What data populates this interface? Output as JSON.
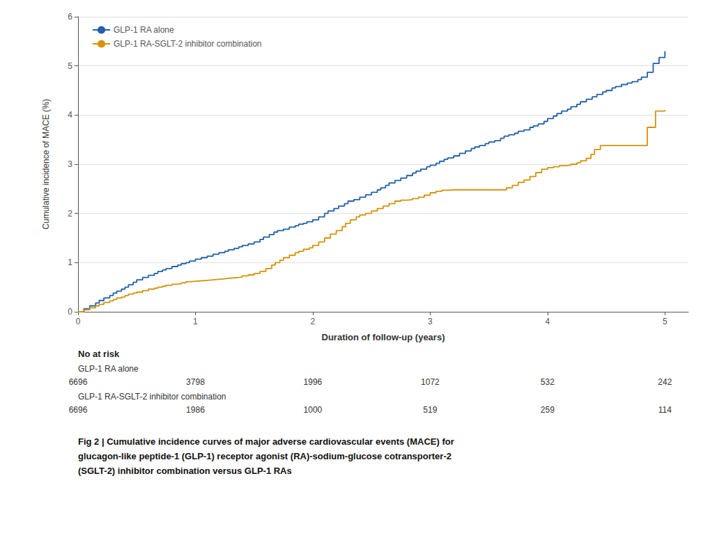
{
  "chart_data": {
    "type": "step",
    "xlabel": "Duration of follow-up (years)",
    "ylabel": "Cumulative incidence of MACE (%)",
    "xlim": [
      0,
      5.2
    ],
    "ylim": [
      0,
      6
    ],
    "xticks": [
      0,
      1,
      2,
      3,
      4,
      5
    ],
    "yticks": [
      0,
      1,
      2,
      3,
      4,
      5,
      6
    ],
    "grid": "y",
    "legend": "upper left",
    "series": [
      {
        "name": "GLP-1 RA alone",
        "color": "#2060a8",
        "x": [
          0.0,
          0.05,
          0.1,
          0.15,
          0.18,
          0.22,
          0.27,
          0.3,
          0.33,
          0.37,
          0.4,
          0.43,
          0.47,
          0.5,
          0.55,
          0.6,
          0.65,
          0.68,
          0.72,
          0.75,
          0.8,
          0.85,
          0.88,
          0.92,
          0.95,
          1.0,
          1.05,
          1.1,
          1.15,
          1.2,
          1.25,
          1.28,
          1.33,
          1.37,
          1.4,
          1.45,
          1.5,
          1.55,
          1.58,
          1.63,
          1.67,
          1.7,
          1.75,
          1.8,
          1.85,
          1.88,
          1.92,
          1.95,
          2.0,
          2.05,
          2.1,
          2.13,
          2.18,
          2.22,
          2.27,
          2.3,
          2.35,
          2.4,
          2.45,
          2.5,
          2.55,
          2.58,
          2.62,
          2.65,
          2.7,
          2.75,
          2.8,
          2.85,
          2.88,
          2.92,
          2.97,
          3.0,
          3.05,
          3.08,
          3.12,
          3.15,
          3.2,
          3.25,
          3.3,
          3.35,
          3.38,
          3.42,
          3.47,
          3.5,
          3.55,
          3.6,
          3.63,
          3.67,
          3.72,
          3.75,
          3.8,
          3.85,
          3.88,
          3.92,
          3.97,
          4.0,
          4.05,
          4.08,
          4.12,
          4.17,
          4.2,
          4.25,
          4.28,
          4.33,
          4.38,
          4.42,
          4.47,
          4.5,
          4.55,
          4.58,
          4.63,
          4.68,
          4.72,
          4.77,
          4.8,
          4.85,
          4.9,
          4.95,
          5.0
        ],
        "values": [
          0.0,
          0.06,
          0.12,
          0.18,
          0.23,
          0.28,
          0.33,
          0.38,
          0.42,
          0.46,
          0.5,
          0.55,
          0.6,
          0.65,
          0.7,
          0.74,
          0.78,
          0.82,
          0.85,
          0.88,
          0.92,
          0.95,
          0.98,
          1.0,
          1.03,
          1.07,
          1.1,
          1.13,
          1.17,
          1.2,
          1.23,
          1.26,
          1.29,
          1.32,
          1.35,
          1.38,
          1.42,
          1.47,
          1.52,
          1.57,
          1.62,
          1.65,
          1.68,
          1.72,
          1.75,
          1.78,
          1.8,
          1.83,
          1.87,
          1.93,
          2.0,
          2.05,
          2.1,
          2.15,
          2.2,
          2.25,
          2.28,
          2.33,
          2.38,
          2.43,
          2.48,
          2.52,
          2.57,
          2.62,
          2.67,
          2.72,
          2.77,
          2.82,
          2.86,
          2.9,
          2.95,
          2.98,
          3.02,
          3.06,
          3.1,
          3.13,
          3.17,
          3.22,
          3.27,
          3.32,
          3.35,
          3.38,
          3.42,
          3.45,
          3.48,
          3.53,
          3.57,
          3.6,
          3.63,
          3.67,
          3.7,
          3.75,
          3.78,
          3.82,
          3.87,
          3.93,
          3.98,
          4.03,
          4.08,
          4.12,
          4.17,
          4.22,
          4.27,
          4.32,
          4.37,
          4.42,
          4.47,
          4.5,
          4.55,
          4.58,
          4.62,
          4.65,
          4.68,
          4.72,
          4.77,
          4.87,
          5.05,
          5.17,
          5.3
        ]
      },
      {
        "name": "GLP-1 RA-SGLT-2 inhibitor combination",
        "color": "#d4930a",
        "x": [
          0.0,
          0.05,
          0.1,
          0.15,
          0.18,
          0.22,
          0.27,
          0.3,
          0.33,
          0.37,
          0.4,
          0.43,
          0.47,
          0.5,
          0.55,
          0.6,
          0.65,
          0.68,
          0.72,
          0.75,
          0.8,
          0.85,
          0.88,
          0.92,
          0.95,
          1.0,
          1.05,
          1.1,
          1.15,
          1.2,
          1.25,
          1.28,
          1.33,
          1.37,
          1.4,
          1.45,
          1.5,
          1.55,
          1.6,
          1.65,
          1.68,
          1.72,
          1.75,
          1.8,
          1.85,
          1.88,
          1.92,
          1.97,
          2.0,
          2.05,
          2.1,
          2.15,
          2.2,
          2.25,
          2.28,
          2.32,
          2.37,
          2.4,
          2.45,
          2.5,
          2.55,
          2.6,
          2.65,
          2.7,
          2.75,
          2.8,
          2.85,
          2.9,
          2.95,
          3.0,
          3.05,
          3.1,
          3.15,
          3.2,
          3.25,
          3.3,
          3.35,
          3.4,
          3.45,
          3.5,
          3.55,
          3.6,
          3.65,
          3.7,
          3.75,
          3.8,
          3.85,
          3.9,
          3.95,
          4.0,
          4.05,
          4.1,
          4.15,
          4.2,
          4.25,
          4.28,
          4.33,
          4.37,
          4.4,
          4.45,
          4.85,
          4.92,
          5.0
        ],
        "values": [
          0.0,
          0.04,
          0.08,
          0.12,
          0.15,
          0.19,
          0.22,
          0.25,
          0.28,
          0.3,
          0.33,
          0.36,
          0.38,
          0.4,
          0.43,
          0.46,
          0.48,
          0.5,
          0.52,
          0.54,
          0.56,
          0.57,
          0.59,
          0.61,
          0.62,
          0.63,
          0.64,
          0.65,
          0.66,
          0.67,
          0.68,
          0.69,
          0.7,
          0.71,
          0.73,
          0.75,
          0.78,
          0.82,
          0.88,
          0.95,
          1.0,
          1.05,
          1.1,
          1.15,
          1.2,
          1.23,
          1.27,
          1.3,
          1.35,
          1.42,
          1.5,
          1.58,
          1.65,
          1.73,
          1.8,
          1.87,
          1.93,
          1.97,
          2.0,
          2.05,
          2.1,
          2.15,
          2.2,
          2.25,
          2.27,
          2.28,
          2.3,
          2.33,
          2.37,
          2.42,
          2.45,
          2.47,
          2.48,
          2.48,
          2.48,
          2.48,
          2.48,
          2.48,
          2.48,
          2.48,
          2.48,
          2.48,
          2.52,
          2.57,
          2.63,
          2.68,
          2.75,
          2.83,
          2.9,
          2.93,
          2.95,
          2.97,
          2.98,
          3.0,
          3.03,
          3.07,
          3.12,
          3.2,
          3.3,
          3.38,
          3.75,
          4.08,
          4.1
        ]
      }
    ],
    "at_risk": {
      "label": "No at risk",
      "timepoints": [
        0,
        1,
        2,
        3,
        4,
        5
      ],
      "rows": [
        {
          "name": "GLP-1 RA alone",
          "counts": [
            6696,
            3798,
            1996,
            1072,
            532,
            242
          ]
        },
        {
          "name": "GLP-1 RA-SGLT-2 inhibitor combination",
          "counts": [
            6696,
            1986,
            1000,
            519,
            259,
            114
          ]
        }
      ]
    },
    "caption": [
      "Fig 2 | Cumulative incidence curves of major adverse cardiovascular events (MACE) for",
      "glucagon-like peptide-1 (GLP-1) receptor agonist (RA)-sodium-glucose cotransporter-2",
      "(SGLT-2) inhibitor combination versus GLP-1 RAs"
    ]
  }
}
